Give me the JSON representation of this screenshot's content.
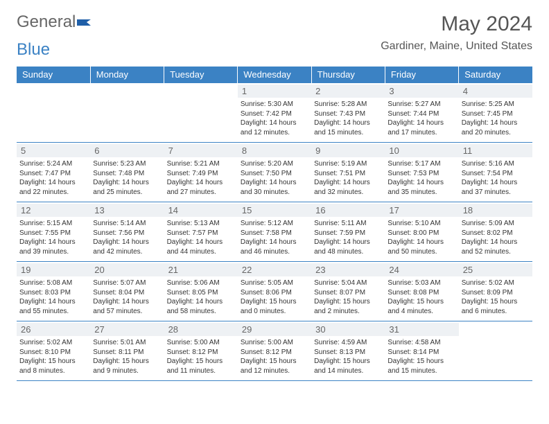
{
  "logo": {
    "text1": "General",
    "text2": "Blue"
  },
  "header": {
    "month_title": "May 2024",
    "location": "Gardiner, Maine, United States"
  },
  "colors": {
    "header_bg": "#3b82c4",
    "header_text": "#ffffff",
    "border": "#3b82c4",
    "daynum_bg": "#eef1f4",
    "daynum_text": "#666666",
    "body_text": "#333333",
    "page_bg": "#ffffff"
  },
  "calendar": {
    "type": "table",
    "columns": [
      "Sunday",
      "Monday",
      "Tuesday",
      "Wednesday",
      "Thursday",
      "Friday",
      "Saturday"
    ],
    "weeks": [
      [
        null,
        null,
        null,
        {
          "n": "1",
          "sr": "5:30 AM",
          "ss": "7:42 PM",
          "dl": "14 hours and 12 minutes."
        },
        {
          "n": "2",
          "sr": "5:28 AM",
          "ss": "7:43 PM",
          "dl": "14 hours and 15 minutes."
        },
        {
          "n": "3",
          "sr": "5:27 AM",
          "ss": "7:44 PM",
          "dl": "14 hours and 17 minutes."
        },
        {
          "n": "4",
          "sr": "5:25 AM",
          "ss": "7:45 PM",
          "dl": "14 hours and 20 minutes."
        }
      ],
      [
        {
          "n": "5",
          "sr": "5:24 AM",
          "ss": "7:47 PM",
          "dl": "14 hours and 22 minutes."
        },
        {
          "n": "6",
          "sr": "5:23 AM",
          "ss": "7:48 PM",
          "dl": "14 hours and 25 minutes."
        },
        {
          "n": "7",
          "sr": "5:21 AM",
          "ss": "7:49 PM",
          "dl": "14 hours and 27 minutes."
        },
        {
          "n": "8",
          "sr": "5:20 AM",
          "ss": "7:50 PM",
          "dl": "14 hours and 30 minutes."
        },
        {
          "n": "9",
          "sr": "5:19 AM",
          "ss": "7:51 PM",
          "dl": "14 hours and 32 minutes."
        },
        {
          "n": "10",
          "sr": "5:17 AM",
          "ss": "7:53 PM",
          "dl": "14 hours and 35 minutes."
        },
        {
          "n": "11",
          "sr": "5:16 AM",
          "ss": "7:54 PM",
          "dl": "14 hours and 37 minutes."
        }
      ],
      [
        {
          "n": "12",
          "sr": "5:15 AM",
          "ss": "7:55 PM",
          "dl": "14 hours and 39 minutes."
        },
        {
          "n": "13",
          "sr": "5:14 AM",
          "ss": "7:56 PM",
          "dl": "14 hours and 42 minutes."
        },
        {
          "n": "14",
          "sr": "5:13 AM",
          "ss": "7:57 PM",
          "dl": "14 hours and 44 minutes."
        },
        {
          "n": "15",
          "sr": "5:12 AM",
          "ss": "7:58 PM",
          "dl": "14 hours and 46 minutes."
        },
        {
          "n": "16",
          "sr": "5:11 AM",
          "ss": "7:59 PM",
          "dl": "14 hours and 48 minutes."
        },
        {
          "n": "17",
          "sr": "5:10 AM",
          "ss": "8:00 PM",
          "dl": "14 hours and 50 minutes."
        },
        {
          "n": "18",
          "sr": "5:09 AM",
          "ss": "8:02 PM",
          "dl": "14 hours and 52 minutes."
        }
      ],
      [
        {
          "n": "19",
          "sr": "5:08 AM",
          "ss": "8:03 PM",
          "dl": "14 hours and 55 minutes."
        },
        {
          "n": "20",
          "sr": "5:07 AM",
          "ss": "8:04 PM",
          "dl": "14 hours and 57 minutes."
        },
        {
          "n": "21",
          "sr": "5:06 AM",
          "ss": "8:05 PM",
          "dl": "14 hours and 58 minutes."
        },
        {
          "n": "22",
          "sr": "5:05 AM",
          "ss": "8:06 PM",
          "dl": "15 hours and 0 minutes."
        },
        {
          "n": "23",
          "sr": "5:04 AM",
          "ss": "8:07 PM",
          "dl": "15 hours and 2 minutes."
        },
        {
          "n": "24",
          "sr": "5:03 AM",
          "ss": "8:08 PM",
          "dl": "15 hours and 4 minutes."
        },
        {
          "n": "25",
          "sr": "5:02 AM",
          "ss": "8:09 PM",
          "dl": "15 hours and 6 minutes."
        }
      ],
      [
        {
          "n": "26",
          "sr": "5:02 AM",
          "ss": "8:10 PM",
          "dl": "15 hours and 8 minutes."
        },
        {
          "n": "27",
          "sr": "5:01 AM",
          "ss": "8:11 PM",
          "dl": "15 hours and 9 minutes."
        },
        {
          "n": "28",
          "sr": "5:00 AM",
          "ss": "8:12 PM",
          "dl": "15 hours and 11 minutes."
        },
        {
          "n": "29",
          "sr": "5:00 AM",
          "ss": "8:12 PM",
          "dl": "15 hours and 12 minutes."
        },
        {
          "n": "30",
          "sr": "4:59 AM",
          "ss": "8:13 PM",
          "dl": "15 hours and 14 minutes."
        },
        {
          "n": "31",
          "sr": "4:58 AM",
          "ss": "8:14 PM",
          "dl": "15 hours and 15 minutes."
        },
        null
      ]
    ],
    "labels": {
      "sunrise": "Sunrise:",
      "sunset": "Sunset:",
      "daylight": "Daylight:"
    }
  }
}
